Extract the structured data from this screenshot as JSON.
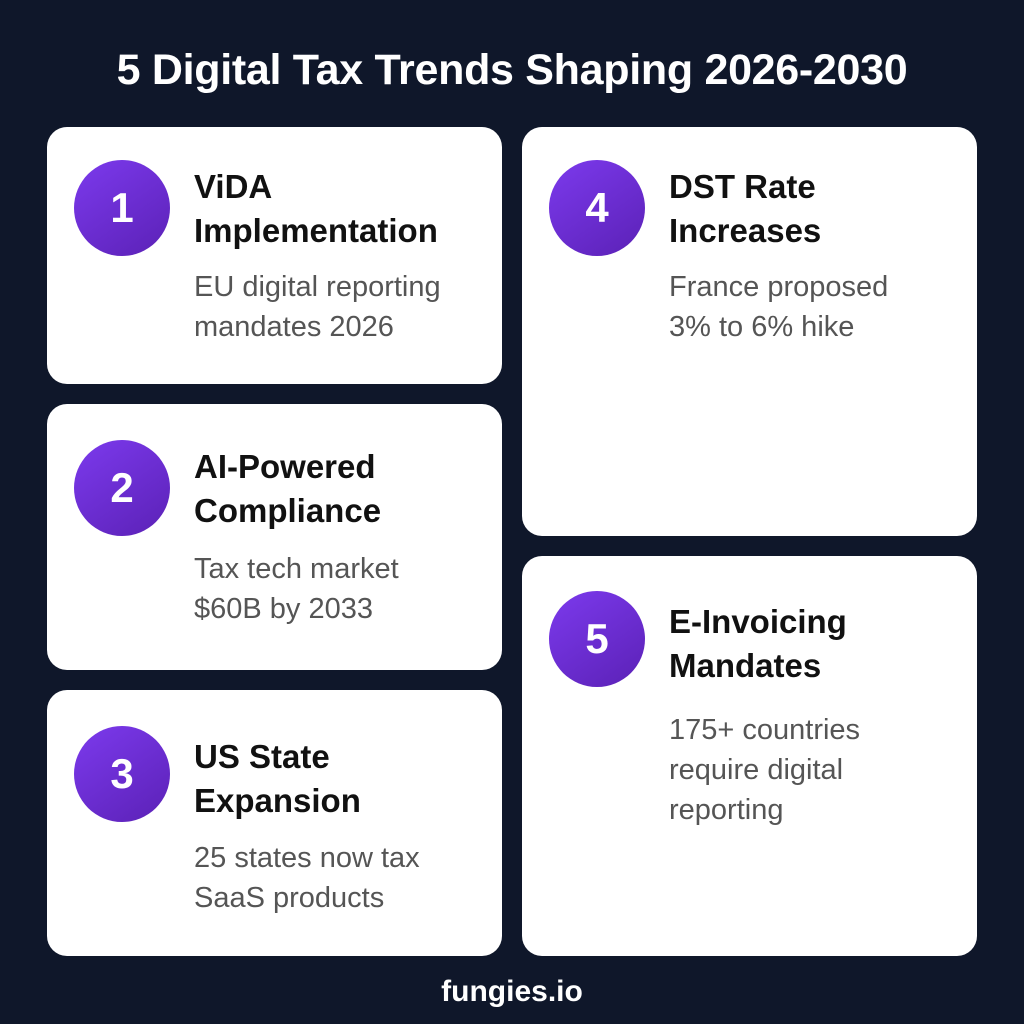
{
  "title": "5 Digital Tax Trends Shaping 2026-2030",
  "trends": [
    {
      "number": "1",
      "title": "ViDA\nImplementation",
      "description": "EU digital reporting\nmandates 2026"
    },
    {
      "number": "2",
      "title": "AI-Powered\nCompliance",
      "description": "Tax tech market\n$60B by 2033"
    },
    {
      "number": "3",
      "title": "US State\nExpansion",
      "description": "25 states now tax\nSaaS products"
    },
    {
      "number": "4",
      "title": "DST Rate\nIncreases",
      "description": "France proposed\n3% to 6% hike"
    },
    {
      "number": "5",
      "title": "E-Invoicing\nMandates",
      "description": "175+ countries\nrequire digital\nreporting"
    }
  ],
  "footer": "fungies.io",
  "colors": {
    "background": "#0f172a",
    "card": "#ffffff",
    "badge": "#6d28d9",
    "title_text": "#111111",
    "description_text": "#555555"
  }
}
